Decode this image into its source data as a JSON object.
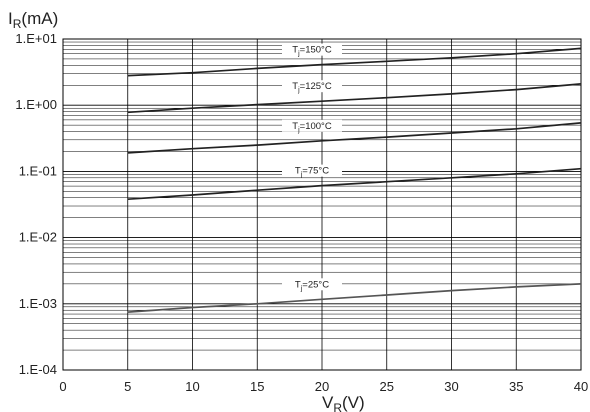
{
  "chart_data": {
    "type": "line",
    "ylabel": {
      "main": "I",
      "sub": "R",
      "unit": "(mA)"
    },
    "xlabel": {
      "main": "V",
      "sub": "R",
      "unit": "(V)"
    },
    "xlim": [
      0,
      40
    ],
    "ylim": [
      0.0001,
      10
    ],
    "yscale": "log",
    "x_ticks": [
      0,
      5,
      10,
      15,
      20,
      25,
      30,
      35,
      40
    ],
    "x_tick_labels": [
      "0",
      "5",
      "10",
      "15",
      "20",
      "25",
      "30",
      "35",
      "40"
    ],
    "y_ticks": [
      10,
      1,
      0.1,
      0.01,
      0.001,
      0.0001
    ],
    "y_tick_labels": [
      "1.E+01",
      "1.E+00",
      "1.E-01",
      "1.E-02",
      "1.E-03",
      "1.E-04"
    ],
    "grid": true,
    "colors": {
      "line": "#222222",
      "line_low": "#555555",
      "grid": "#000000"
    },
    "series": [
      {
        "name": "150°C",
        "label_main": "T",
        "label_sub": "j",
        "label_rest": "=150°C",
        "x": [
          5,
          10,
          15,
          20,
          25,
          30,
          35,
          40
        ],
        "y": [
          2.8,
          3.1,
          3.6,
          4.1,
          4.6,
          5.2,
          6.0,
          7.2
        ]
      },
      {
        "name": "125°C",
        "label_main": "T",
        "label_sub": "j",
        "label_rest": "=125°C",
        "x": [
          5,
          10,
          15,
          20,
          25,
          30,
          35,
          40
        ],
        "y": [
          0.78,
          0.9,
          1.02,
          1.15,
          1.3,
          1.48,
          1.72,
          2.1
        ]
      },
      {
        "name": "100°C",
        "label_main": "T",
        "label_sub": "j",
        "label_rest": "=100°C",
        "x": [
          5,
          10,
          15,
          20,
          25,
          30,
          35,
          40
        ],
        "y": [
          0.19,
          0.22,
          0.25,
          0.29,
          0.33,
          0.38,
          0.44,
          0.54
        ]
      },
      {
        "name": "75°C",
        "label_main": "T",
        "label_sub": "j",
        "label_rest": "=75°C",
        "x": [
          5,
          10,
          15,
          20,
          25,
          30,
          35,
          40
        ],
        "y": [
          0.038,
          0.044,
          0.052,
          0.061,
          0.07,
          0.08,
          0.092,
          0.11
        ]
      },
      {
        "name": "25°C",
        "label_main": "T",
        "label_sub": "j",
        "label_rest": "=25°C",
        "x": [
          5,
          10,
          15,
          20,
          25,
          30,
          35,
          40
        ],
        "y": [
          0.00075,
          0.00088,
          0.001,
          0.00117,
          0.00136,
          0.00158,
          0.0018,
          0.002
        ]
      }
    ]
  }
}
